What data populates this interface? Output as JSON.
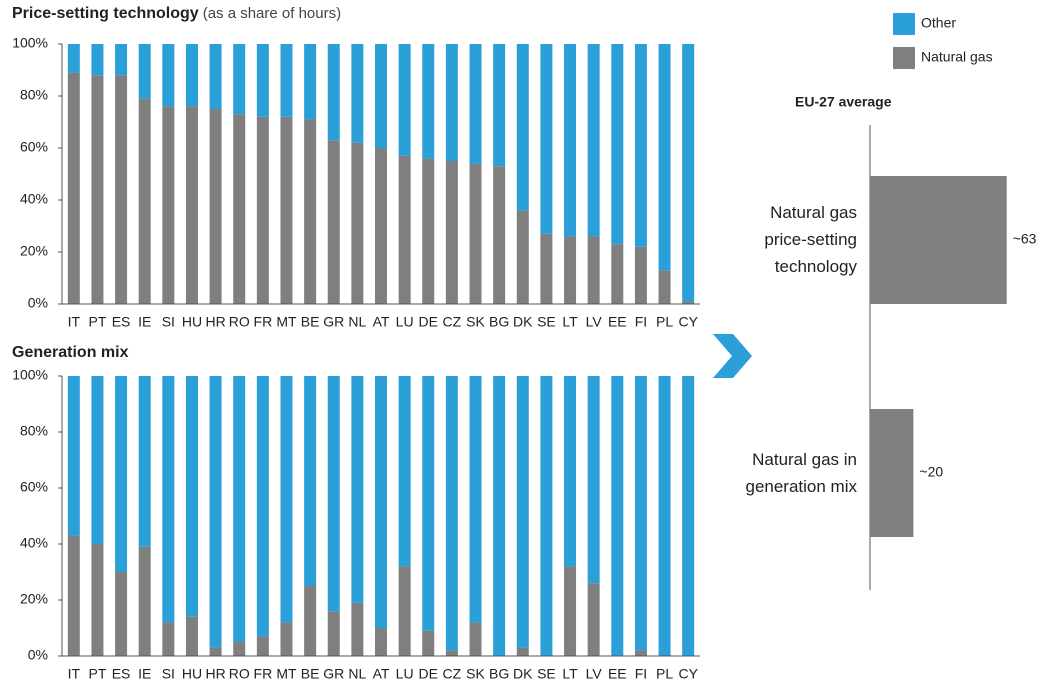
{
  "chart_data": [
    {
      "type": "bar",
      "stacked": true,
      "title": "Price-setting technology",
      "subtitle": "(as a share of hours)",
      "categories": [
        "IT",
        "PT",
        "ES",
        "IE",
        "SI",
        "HU",
        "HR",
        "RO",
        "FR",
        "MT",
        "BE",
        "GR",
        "NL",
        "AT",
        "LU",
        "DE",
        "CZ",
        "SK",
        "BG",
        "DK",
        "SE",
        "LT",
        "LV",
        "EE",
        "FI",
        "PL",
        "CY"
      ],
      "series": [
        {
          "name": "Natural gas",
          "color": "#7f7f7f",
          "values": [
            89,
            88,
            88,
            79,
            76,
            76,
            75,
            73,
            72,
            72,
            71,
            63,
            62,
            60,
            57,
            56,
            55,
            54,
            53,
            36,
            27,
            26,
            26,
            23,
            22,
            13,
            1
          ]
        },
        {
          "name": "Other",
          "color": "#2b9fd8",
          "values": [
            11,
            12,
            12,
            21,
            24,
            24,
            25,
            27,
            28,
            28,
            29,
            37,
            38,
            40,
            43,
            44,
            45,
            46,
            47,
            64,
            73,
            74,
            74,
            77,
            78,
            87,
            99
          ]
        }
      ],
      "ylim": [
        0,
        100
      ],
      "yticks": [
        {
          "value": 0,
          "label": "0%"
        },
        {
          "value": 20,
          "label": "20%"
        },
        {
          "value": 40,
          "label": "40%"
        },
        {
          "value": 60,
          "label": "60%"
        },
        {
          "value": 80,
          "label": "80%"
        },
        {
          "value": 100,
          "label": "100%"
        }
      ],
      "legend": "top-right"
    },
    {
      "type": "bar",
      "stacked": true,
      "title": "Generation mix",
      "categories": [
        "IT",
        "PT",
        "ES",
        "IE",
        "SI",
        "HU",
        "HR",
        "RO",
        "FR",
        "MT",
        "BE",
        "GR",
        "NL",
        "AT",
        "LU",
        "DE",
        "CZ",
        "SK",
        "BG",
        "DK",
        "SE",
        "LT",
        "LV",
        "EE",
        "FI",
        "PL",
        "CY"
      ],
      "series": [
        {
          "color": "#7f7f7f",
          "values": [
            43,
            40,
            30,
            39,
            12,
            14,
            3,
            5,
            7,
            12,
            25,
            16,
            19,
            10,
            32,
            9,
            2,
            12,
            0,
            3,
            0,
            32,
            26,
            0,
            2,
            0,
            0
          ]
        },
        {
          "color": "#2b9fd8",
          "values": [
            57,
            60,
            70,
            61,
            88,
            86,
            97,
            95,
            93,
            88,
            75,
            84,
            81,
            90,
            68,
            91,
            98,
            88,
            100,
            97,
            100,
            68,
            74,
            100,
            98,
            100,
            100
          ]
        }
      ],
      "ylim": [
        0,
        100
      ],
      "yticks": [
        {
          "value": 0,
          "label": "0%"
        },
        {
          "value": 20,
          "label": "20%"
        },
        {
          "value": 40,
          "label": "40%"
        },
        {
          "value": 60,
          "label": "60%"
        },
        {
          "value": 80,
          "label": "80%"
        },
        {
          "value": 100,
          "label": "100%"
        }
      ]
    },
    {
      "type": "barh",
      "title": "EU-27 average",
      "categories": [
        "Natural gas price-setting technology",
        "Natural gas in generation mix"
      ],
      "values": [
        63,
        20
      ],
      "value_labels": [
        "~63",
        "~20"
      ],
      "color": "#7f7f7f"
    }
  ]
}
